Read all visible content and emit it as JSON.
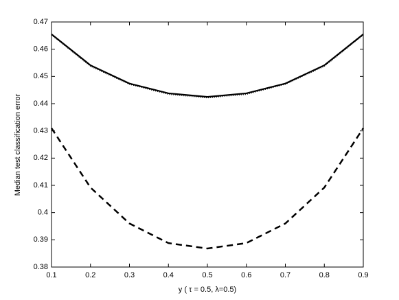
{
  "chart_data": {
    "type": "line",
    "x_label": "y ( τ = 0.5, λ=0.5)",
    "y_label": "Median test classification error",
    "x": [
      0.1,
      0.2,
      0.3,
      0.4,
      0.5,
      0.6,
      0.7,
      0.8,
      0.9
    ],
    "series": [
      {
        "color": "#000000",
        "style": "dotted",
        "values": [
          0.4652,
          0.4537,
          0.4471,
          0.4434,
          0.4421,
          0.4434,
          0.4471,
          0.4537,
          0.4652
        ]
      },
      {
        "color": "#000000",
        "style": "solid",
        "values": [
          0.4655,
          0.4541,
          0.4474,
          0.4438,
          0.4425,
          0.4438,
          0.4474,
          0.4541,
          0.4655
        ]
      },
      {
        "color": "#000000",
        "style": "dashed",
        "values": [
          0.431,
          0.4092,
          0.396,
          0.3888,
          0.3868,
          0.3888,
          0.396,
          0.4092,
          0.431
        ]
      }
    ],
    "xlim": [
      0.1,
      0.9
    ],
    "ylim": [
      0.38,
      0.47
    ],
    "xticks": [
      0.1,
      0.2,
      0.3,
      0.4,
      0.5,
      0.6,
      0.7,
      0.8,
      0.9
    ],
    "yticks": [
      0.38,
      0.39,
      0.4,
      0.41,
      0.42,
      0.43,
      0.44,
      0.45,
      0.46,
      0.47
    ],
    "grid": false
  }
}
